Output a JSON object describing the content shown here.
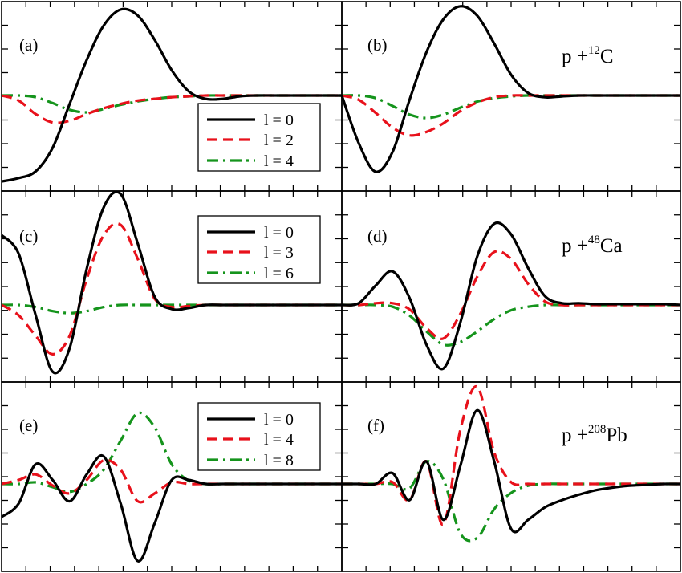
{
  "colors": {
    "l_low": "#000000",
    "l_mid": "#e8111b",
    "l_high": "#15941c"
  },
  "panels": [
    {
      "label": "(a)",
      "nucleus": null
    },
    {
      "label": "(b)",
      "nucleus": {
        "prefix": "p +",
        "mass": "12",
        "symbol": "C"
      }
    },
    {
      "label": "(c)",
      "nucleus": null
    },
    {
      "label": "(d)",
      "nucleus": {
        "prefix": "p +",
        "mass": "48",
        "symbol": "Ca"
      }
    },
    {
      "label": "(e)",
      "nucleus": null
    },
    {
      "label": "(f)",
      "nucleus": {
        "prefix": "p +",
        "mass": "208",
        "symbol": "Pb"
      }
    }
  ],
  "legends": [
    {
      "panels": [
        "a",
        "b"
      ],
      "entries": [
        "l = 0",
        "l = 2",
        "l = 4"
      ]
    },
    {
      "panels": [
        "c",
        "d"
      ],
      "entries": [
        "l = 0",
        "l = 3",
        "l = 6"
      ]
    },
    {
      "panels": [
        "e",
        "f"
      ],
      "entries": [
        "l = 0",
        "l = 4",
        "l = 8"
      ]
    }
  ],
  "chart_data": {
    "type": "line",
    "x": [
      0,
      1,
      2,
      3,
      4,
      5,
      6,
      7,
      8,
      9,
      10,
      11,
      12,
      13,
      14,
      15,
      16,
      17,
      18,
      19,
      20
    ],
    "ylim": [
      -1,
      1
    ],
    "axis_labels_shown": false,
    "grid": false,
    "subplots": [
      {
        "id": "a",
        "series": [
          {
            "name": "l = 0",
            "color": "l_low",
            "style": "solid",
            "values": [
              -1.02,
              -0.98,
              -0.9,
              -0.62,
              -0.1,
              0.42,
              0.83,
              1.02,
              0.95,
              0.66,
              0.3,
              0.05,
              -0.04,
              -0.04,
              -0.01,
              0.0,
              0.0,
              0.0,
              0.0,
              0.0,
              0.0
            ]
          },
          {
            "name": "l = 2",
            "color": "l_mid",
            "style": "dashed",
            "values": [
              0.0,
              -0.06,
              -0.22,
              -0.32,
              -0.3,
              -0.22,
              -0.15,
              -0.1,
              -0.06,
              -0.04,
              -0.02,
              -0.01,
              0.0,
              0.0,
              0.0,
              0.0,
              0.0,
              0.0,
              0.0,
              0.0,
              0.0
            ]
          },
          {
            "name": "l = 4",
            "color": "l_high",
            "style": "dashdot",
            "values": [
              0.0,
              0.0,
              -0.02,
              -0.09,
              -0.17,
              -0.2,
              -0.16,
              -0.11,
              -0.07,
              -0.04,
              -0.02,
              -0.01,
              0.0,
              0.0,
              0.0,
              0.0,
              0.0,
              0.0,
              0.0,
              0.0,
              0.0
            ]
          }
        ]
      },
      {
        "id": "b",
        "series": [
          {
            "name": "l = 0",
            "color": "l_low",
            "style": "solid",
            "values": [
              0.0,
              -0.55,
              -0.88,
              -0.65,
              -0.05,
              0.5,
              0.88,
              1.03,
              0.92,
              0.6,
              0.24,
              0.03,
              -0.02,
              -0.01,
              0.0,
              0.0,
              0.0,
              0.0,
              0.0,
              0.0,
              0.0
            ]
          },
          {
            "name": "l = 2",
            "color": "l_mid",
            "style": "dashed",
            "values": [
              0.0,
              -0.05,
              -0.2,
              -0.37,
              -0.46,
              -0.42,
              -0.32,
              -0.18,
              -0.08,
              -0.02,
              0.0,
              0.0,
              0.0,
              0.0,
              0.0,
              0.0,
              0.0,
              0.0,
              0.0,
              0.0,
              0.0
            ]
          },
          {
            "name": "l = 4",
            "color": "l_high",
            "style": "dashdot",
            "values": [
              0.0,
              0.0,
              -0.03,
              -0.12,
              -0.22,
              -0.26,
              -0.22,
              -0.14,
              -0.07,
              -0.03,
              -0.01,
              0.0,
              0.0,
              0.0,
              0.0,
              0.0,
              0.0,
              0.0,
              0.0,
              0.0,
              0.0
            ]
          }
        ]
      },
      {
        "id": "c",
        "series": [
          {
            "name": "l = 0",
            "color": "l_low",
            "style": "solid",
            "values": [
              0.68,
              0.5,
              -0.1,
              -0.65,
              -0.42,
              0.35,
              0.95,
              1.08,
              0.6,
              0.08,
              -0.04,
              -0.03,
              0.0,
              0.0,
              0.0,
              0.0,
              0.0,
              0.0,
              0.0,
              0.0,
              0.0
            ]
          },
          {
            "name": "l = 3",
            "color": "l_mid",
            "style": "dashed",
            "values": [
              0.0,
              -0.1,
              -0.3,
              -0.48,
              -0.3,
              0.25,
              0.68,
              0.78,
              0.45,
              0.06,
              -0.02,
              -0.01,
              0.0,
              0.0,
              0.0,
              0.0,
              0.0,
              0.0,
              0.0,
              0.0,
              0.0
            ]
          },
          {
            "name": "l = 6",
            "color": "l_high",
            "style": "dashdot",
            "values": [
              0.0,
              0.0,
              -0.02,
              -0.06,
              -0.08,
              -0.06,
              -0.02,
              0.0,
              0.0,
              0.0,
              0.0,
              0.0,
              0.0,
              0.0,
              0.0,
              0.0,
              0.0,
              0.0,
              0.0,
              0.0,
              0.0
            ]
          }
        ]
      },
      {
        "id": "d",
        "series": [
          {
            "name": "l = 0",
            "color": "l_low",
            "style": "solid",
            "values": [
              0.0,
              0.02,
              0.22,
              0.38,
              0.08,
              -0.45,
              -0.72,
              -0.2,
              0.55,
              0.92,
              0.8,
              0.42,
              0.1,
              0.02,
              0.02,
              0.01,
              0.01,
              0.01,
              0.01,
              0.01,
              0.0
            ]
          },
          {
            "name": "l = 3",
            "color": "l_mid",
            "style": "dashed",
            "values": [
              0.0,
              0.0,
              0.02,
              0.02,
              -0.05,
              -0.26,
              -0.38,
              -0.1,
              0.32,
              0.6,
              0.52,
              0.24,
              0.04,
              0.0,
              0.0,
              0.0,
              0.0,
              0.0,
              0.0,
              0.0,
              0.0
            ]
          },
          {
            "name": "l = 6",
            "color": "l_high",
            "style": "dashdot",
            "values": [
              0.0,
              0.0,
              0.0,
              -0.02,
              -0.12,
              -0.3,
              -0.45,
              -0.42,
              -0.3,
              -0.16,
              -0.06,
              -0.02,
              0.0,
              0.0,
              0.0,
              0.0,
              0.0,
              0.0,
              0.0,
              0.0,
              0.0
            ]
          }
        ]
      },
      {
        "id": "e",
        "series": [
          {
            "name": "l = 0",
            "color": "l_low",
            "style": "solid",
            "values": [
              -0.42,
              -0.25,
              0.25,
              0.05,
              -0.22,
              0.12,
              0.35,
              -0.25,
              -0.98,
              -0.5,
              0.05,
              0.05,
              0.0,
              0.0,
              0.0,
              0.0,
              0.0,
              0.0,
              0.0,
              0.0,
              0.0
            ]
          },
          {
            "name": "l = 4",
            "color": "l_mid",
            "style": "dashed",
            "values": [
              0.0,
              0.05,
              0.12,
              -0.02,
              -0.12,
              0.05,
              0.3,
              0.18,
              -0.22,
              -0.12,
              0.02,
              0.0,
              0.0,
              0.0,
              0.0,
              0.0,
              0.0,
              0.0,
              0.0,
              0.0,
              0.0
            ]
          },
          {
            "name": "l = 8",
            "color": "l_high",
            "style": "dashdot",
            "values": [
              0.0,
              0.0,
              0.02,
              -0.04,
              -0.1,
              0.0,
              0.18,
              0.55,
              0.9,
              0.72,
              0.25,
              0.04,
              0.0,
              0.0,
              0.0,
              0.0,
              0.0,
              0.0,
              0.0,
              0.0,
              0.0
            ]
          }
        ]
      },
      {
        "id": "f",
        "series": [
          {
            "name": "l = 0",
            "color": "l_low",
            "style": "solid",
            "values": [
              0.0,
              0.0,
              0.0,
              0.12,
              -0.18,
              0.25,
              -0.4,
              0.2,
              0.82,
              0.25,
              -0.5,
              -0.4,
              -0.26,
              -0.18,
              -0.12,
              -0.07,
              -0.04,
              -0.02,
              -0.01,
              0.0,
              0.0
            ]
          },
          {
            "name": "l = 4",
            "color": "l_mid",
            "style": "dashed",
            "values": [
              0.0,
              0.0,
              0.0,
              0.02,
              -0.18,
              0.25,
              -0.45,
              0.6,
              1.08,
              0.35,
              0.02,
              0.0,
              0.0,
              0.0,
              0.0,
              0.0,
              0.0,
              0.0,
              0.0,
              0.0,
              0.0
            ]
          },
          {
            "name": "l = 8",
            "color": "l_high",
            "style": "dashdot",
            "values": [
              0.0,
              0.0,
              0.0,
              0.0,
              -0.05,
              0.25,
              0.05,
              -0.55,
              -0.6,
              -0.28,
              -0.1,
              -0.02,
              0.0,
              0.0,
              0.0,
              0.0,
              0.0,
              0.0,
              0.0,
              0.0,
              0.0
            ]
          }
        ]
      }
    ]
  }
}
